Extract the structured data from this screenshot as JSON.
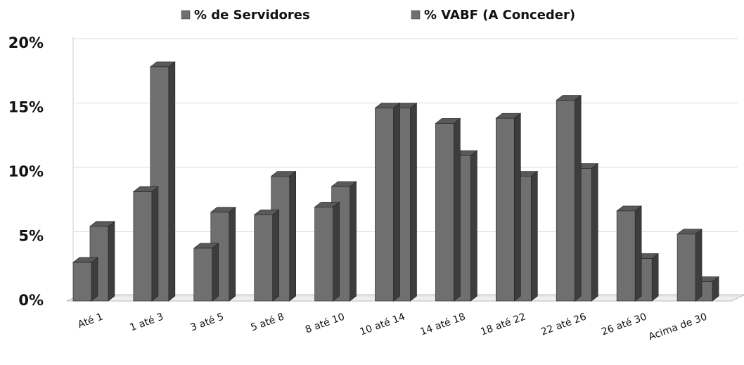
{
  "chart_data": {
    "type": "bar",
    "categories": [
      "Até 1",
      "1 até 3",
      "3 até 5",
      "5 até 8",
      "8 até 10",
      "10 até 14",
      "14 até 18",
      "18 até 22",
      "22 até 26",
      "26 até 30",
      "Acima de 30"
    ],
    "series": [
      {
        "name": "% de Servidores",
        "color": "#6f6f6f",
        "values": [
          3,
          8.5,
          4.1,
          6.7,
          7.3,
          15,
          13.8,
          14.2,
          15.6,
          7,
          5.2
        ]
      },
      {
        "name": "% VABF (A Conceder)",
        "color": "#6f6f6f",
        "values": [
          5.8,
          18.2,
          6.9,
          9.7,
          8.9,
          15,
          11.3,
          9.7,
          10.3,
          3.3,
          1.5
        ]
      }
    ],
    "ylim": [
      0,
      20
    ],
    "yticks": [
      {
        "value": 0,
        "label": "0%"
      },
      {
        "value": 5,
        "label": "5%"
      },
      {
        "value": 10,
        "label": "10%"
      },
      {
        "value": 15,
        "label": "15%"
      },
      {
        "value": 20,
        "label": "20%"
      }
    ],
    "grid": true,
    "legend": "top"
  }
}
